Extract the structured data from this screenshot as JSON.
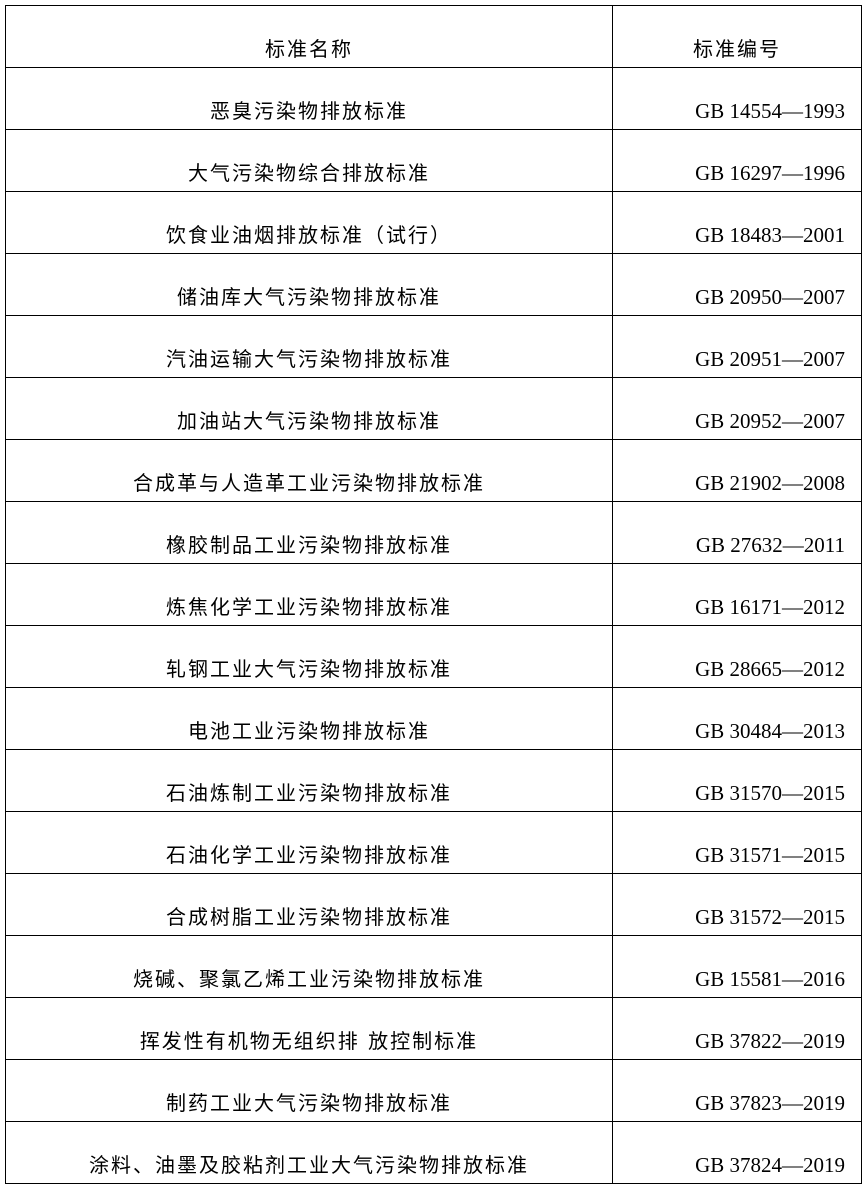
{
  "header": {
    "name": "标准名称",
    "code": "标准编号"
  },
  "rows": [
    {
      "name": "恶臭污染物排放标准",
      "code": "GB 14554—1993"
    },
    {
      "name": "大气污染物综合排放标准",
      "code": "GB 16297—1996"
    },
    {
      "name": "饮食业油烟排放标准（试行）",
      "code": "GB 18483—2001"
    },
    {
      "name": "储油库大气污染物排放标准",
      "code": "GB 20950—2007"
    },
    {
      "name": "汽油运输大气污染物排放标准",
      "code": "GB 20951—2007"
    },
    {
      "name": "加油站大气污染物排放标准",
      "code": "GB 20952—2007"
    },
    {
      "name": "合成革与人造革工业污染物排放标准",
      "code": "GB 21902—2008"
    },
    {
      "name": "橡胶制品工业污染物排放标准",
      "code": "GB 27632—2011"
    },
    {
      "name": "炼焦化学工业污染物排放标准",
      "code": "GB 16171—2012"
    },
    {
      "name": "轧钢工业大气污染物排放标准",
      "code": "GB 28665—2012"
    },
    {
      "name": "电池工业污染物排放标准",
      "code": "GB 30484—2013"
    },
    {
      "name": "石油炼制工业污染物排放标准",
      "code": "GB 31570—2015"
    },
    {
      "name": "石油化学工业污染物排放标准",
      "code": "GB 31571—2015"
    },
    {
      "name": "合成树脂工业污染物排放标准",
      "code": "GB 31572—2015"
    },
    {
      "name": "烧碱、聚氯乙烯工业污染物排放标准",
      "code": "GB 15581—2016"
    },
    {
      "name": "挥发性有机物无组织排 放控制标准",
      "code": "GB 37822—2019"
    },
    {
      "name": "制药工业大气污染物排放标准",
      "code": "GB 37823—2019"
    },
    {
      "name": "涂料、油墨及胶粘剂工业大气污染物排放标准",
      "code": "GB 37824—2019"
    }
  ]
}
